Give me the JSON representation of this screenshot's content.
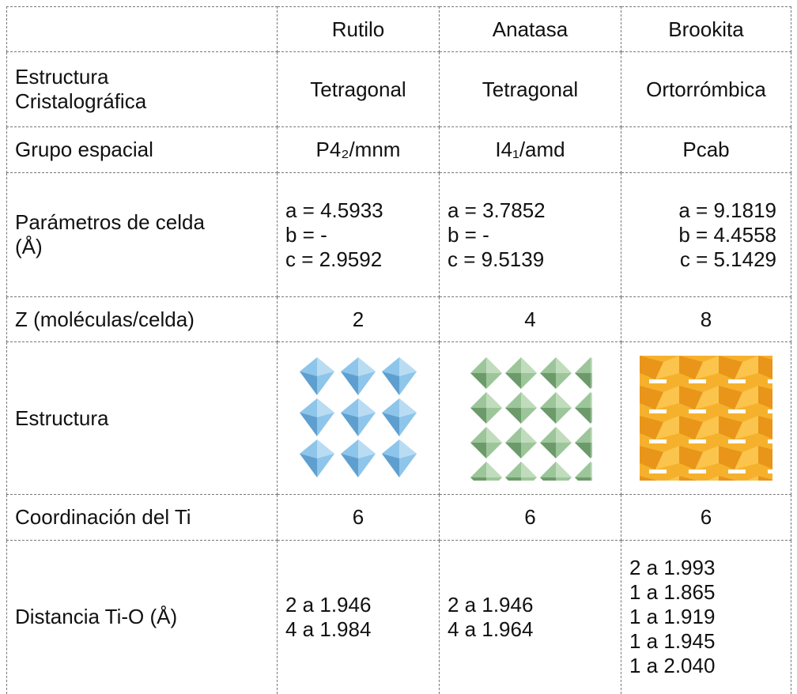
{
  "table": {
    "columns": [
      "Rutilo",
      "Anatasa",
      "Brookita"
    ],
    "rows": [
      {
        "label": [
          "Estructura",
          "Cristalográfica"
        ],
        "cells": [
          [
            "Tetragonal"
          ],
          [
            "Tetragonal"
          ],
          [
            "Ortorrómbica"
          ]
        ]
      },
      {
        "label": [
          "Grupo espacial"
        ],
        "cells": [
          [
            "P4₂/mnm"
          ],
          [
            "I4₁/amd"
          ],
          [
            "Pcab"
          ]
        ]
      },
      {
        "label": [
          "Parámetros de celda",
          "(Å)"
        ],
        "cells": [
          [
            "a = 4.5933",
            "b = -",
            "c = 2.9592"
          ],
          [
            "a = 3.7852",
            "b = -",
            "c = 9.5139"
          ],
          [
            "a = 9.1819",
            "b = 4.4558",
            "c = 5.1429"
          ]
        ]
      },
      {
        "label": [
          "Z (moléculas/celda)"
        ],
        "cells": [
          [
            "2"
          ],
          [
            "4"
          ],
          [
            "8"
          ]
        ]
      },
      {
        "label": [
          "Estructura"
        ]
      },
      {
        "label": [
          "Coordinación del Ti"
        ],
        "cells": [
          [
            "6"
          ],
          [
            "6"
          ],
          [
            "6"
          ]
        ]
      },
      {
        "label": [
          "Distancia Ti-O (Å)"
        ],
        "cells": [
          [
            "2 a 1.946",
            "4 a 1.984"
          ],
          [
            "2 a 1.946",
            "4 a 1.964"
          ],
          [
            "2 a 1.993",
            "1 a 1.865",
            "1 a 1.919",
            "1 a 1.945",
            "1 a 2.040"
          ]
        ]
      }
    ]
  }
}
